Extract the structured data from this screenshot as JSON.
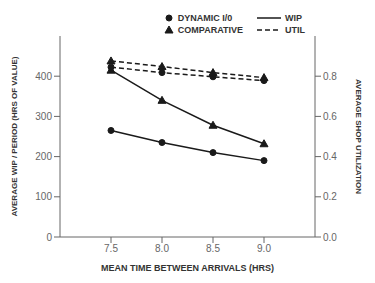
{
  "chart_data": {
    "type": "line",
    "x": [
      7.5,
      8.0,
      8.5,
      9.0
    ],
    "xlabel": "MEAN TIME BETWEEN ARRIVALS (HRS)",
    "ylabel": "AVERAGE WIP / PERIOD (HRS OF VALUE)",
    "y2label": "AVERAGE SHOP UTILIZATION",
    "xlim": [
      7.0,
      9.5
    ],
    "xticks": [
      7.5,
      {
        "value": 8.0,
        "label": "8.0"
      },
      8.5,
      {
        "value": 9.0,
        "label": "9.0"
      }
    ],
    "ylim": [
      0,
      500
    ],
    "yticks": [
      0,
      100,
      200,
      300,
      400
    ],
    "y2lim": [
      0.0,
      1.0
    ],
    "y2ticks": [
      {
        "value": 0.0,
        "label": "0.0"
      },
      0.2,
      0.4,
      0.6,
      0.8
    ],
    "grid": false,
    "legend": "upper right",
    "color": "#1a1a1a",
    "legend_markers": [
      {
        "name": "DYNAMIC I/0",
        "marker": "circle"
      },
      {
        "name": "COMPARATIVE",
        "marker": "triangle"
      }
    ],
    "legend_lines": [
      {
        "name": "WIP",
        "line_style": "solid"
      },
      {
        "name": "UTIL",
        "line_style": "dashed"
      }
    ],
    "series": [
      {
        "values": [
          265,
          235,
          210,
          190
        ],
        "marker": "circle",
        "line_style": "solid",
        "axis": "y"
      },
      {
        "values": [
          415,
          340,
          278,
          232
        ],
        "marker": "triangle",
        "line_style": "solid",
        "axis": "y"
      },
      {
        "values": [
          0.845,
          0.818,
          0.797,
          0.778
        ],
        "marker": "circle",
        "line_style": "dashed",
        "axis": "y2"
      },
      {
        "values": [
          0.876,
          0.848,
          0.818,
          0.793
        ],
        "marker": "triangle",
        "line_style": "dashed",
        "axis": "y2"
      }
    ]
  }
}
